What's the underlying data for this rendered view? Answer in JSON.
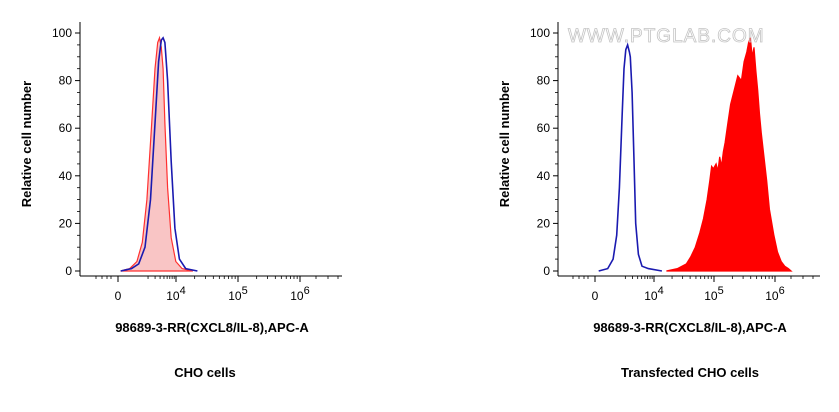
{
  "watermark": "WWW.PTGLAB.COM",
  "chart_data": [
    {
      "type": "area",
      "caption": "CHO cells",
      "xlabel": "98689-3-RR(CXCL8/IL-8),APC-A",
      "ylabel": "Relative cell number",
      "ylim": [
        0,
        100
      ],
      "yticks": [
        0,
        20,
        40,
        60,
        80,
        100
      ],
      "xtick_labels": [
        {
          "text": "0",
          "exp": ""
        },
        {
          "text": "10",
          "exp": "4"
        },
        {
          "text": "10",
          "exp": "5"
        },
        {
          "text": "10",
          "exp": "6"
        }
      ],
      "grid": false,
      "series": [
        {
          "style": "filled",
          "fill": "#f9c5c5",
          "stroke": "#ff3030",
          "x": [
            0.1,
            0.2,
            0.28,
            0.34,
            0.39,
            0.44,
            0.48,
            0.51,
            0.53,
            0.55,
            0.57,
            0.59,
            0.62,
            0.66,
            0.71,
            0.78,
            0.9
          ],
          "y": [
            0,
            1,
            4,
            12,
            30,
            60,
            85,
            96,
            98,
            94,
            85,
            62,
            35,
            14,
            4,
            1,
            0
          ]
        },
        {
          "style": "line",
          "stroke": "#1a1ab0",
          "x": [
            0.1,
            0.22,
            0.3,
            0.37,
            0.43,
            0.48,
            0.52,
            0.55,
            0.57,
            0.59,
            0.62,
            0.66,
            0.7,
            0.75,
            0.82,
            0.95
          ],
          "y": [
            0,
            1,
            3,
            10,
            30,
            62,
            88,
            97,
            98,
            96,
            80,
            46,
            18,
            5,
            1,
            0
          ]
        }
      ]
    },
    {
      "type": "area",
      "caption": "Transfected CHO cells",
      "xlabel": "98689-3-RR(CXCL8/IL-8),APC-A",
      "ylabel": "Relative cell number",
      "ylim": [
        0,
        100
      ],
      "yticks": [
        0,
        20,
        40,
        60,
        80,
        100
      ],
      "xtick_labels": [
        {
          "text": "0",
          "exp": ""
        },
        {
          "text": "10",
          "exp": "4"
        },
        {
          "text": "10",
          "exp": "5"
        },
        {
          "text": "10",
          "exp": "6"
        }
      ],
      "grid": false,
      "series": [
        {
          "style": "line",
          "stroke": "#1a1ab0",
          "x": [
            0.1,
            0.2,
            0.26,
            0.3,
            0.33,
            0.36,
            0.38,
            0.4,
            0.42,
            0.44,
            0.45,
            0.47,
            0.49,
            0.51,
            0.54,
            0.58,
            0.65,
            0.8
          ],
          "y": [
            0,
            1,
            5,
            15,
            35,
            65,
            85,
            93,
            95,
            92,
            90,
            75,
            48,
            20,
            7,
            2,
            1,
            0
          ]
        },
        {
          "style": "filled",
          "fill": "#ff0000",
          "stroke": "#ff0000",
          "x": [
            0.85,
            0.97,
            1.07,
            1.12,
            1.17,
            1.22,
            1.26,
            1.3,
            1.33,
            1.35,
            1.37,
            1.4,
            1.42,
            1.44,
            1.46,
            1.48,
            1.5,
            1.53,
            1.56,
            1.6,
            1.64,
            1.68,
            1.71,
            1.74,
            1.76,
            1.78,
            1.8,
            1.82,
            1.84,
            1.86,
            1.88,
            1.9,
            1.93,
            1.96,
            1.99,
            2.04,
            2.08,
            2.12,
            2.16,
            2.2,
            2.23
          ],
          "y": [
            0,
            1,
            3,
            6,
            10,
            16,
            22,
            30,
            38,
            44,
            43,
            45,
            42,
            48,
            44,
            50,
            54,
            62,
            70,
            76,
            82,
            80,
            88,
            92,
            96,
            98,
            90,
            94,
            84,
            76,
            66,
            58,
            48,
            38,
            26,
            15,
            8,
            4,
            2,
            1,
            0
          ]
        }
      ]
    }
  ]
}
